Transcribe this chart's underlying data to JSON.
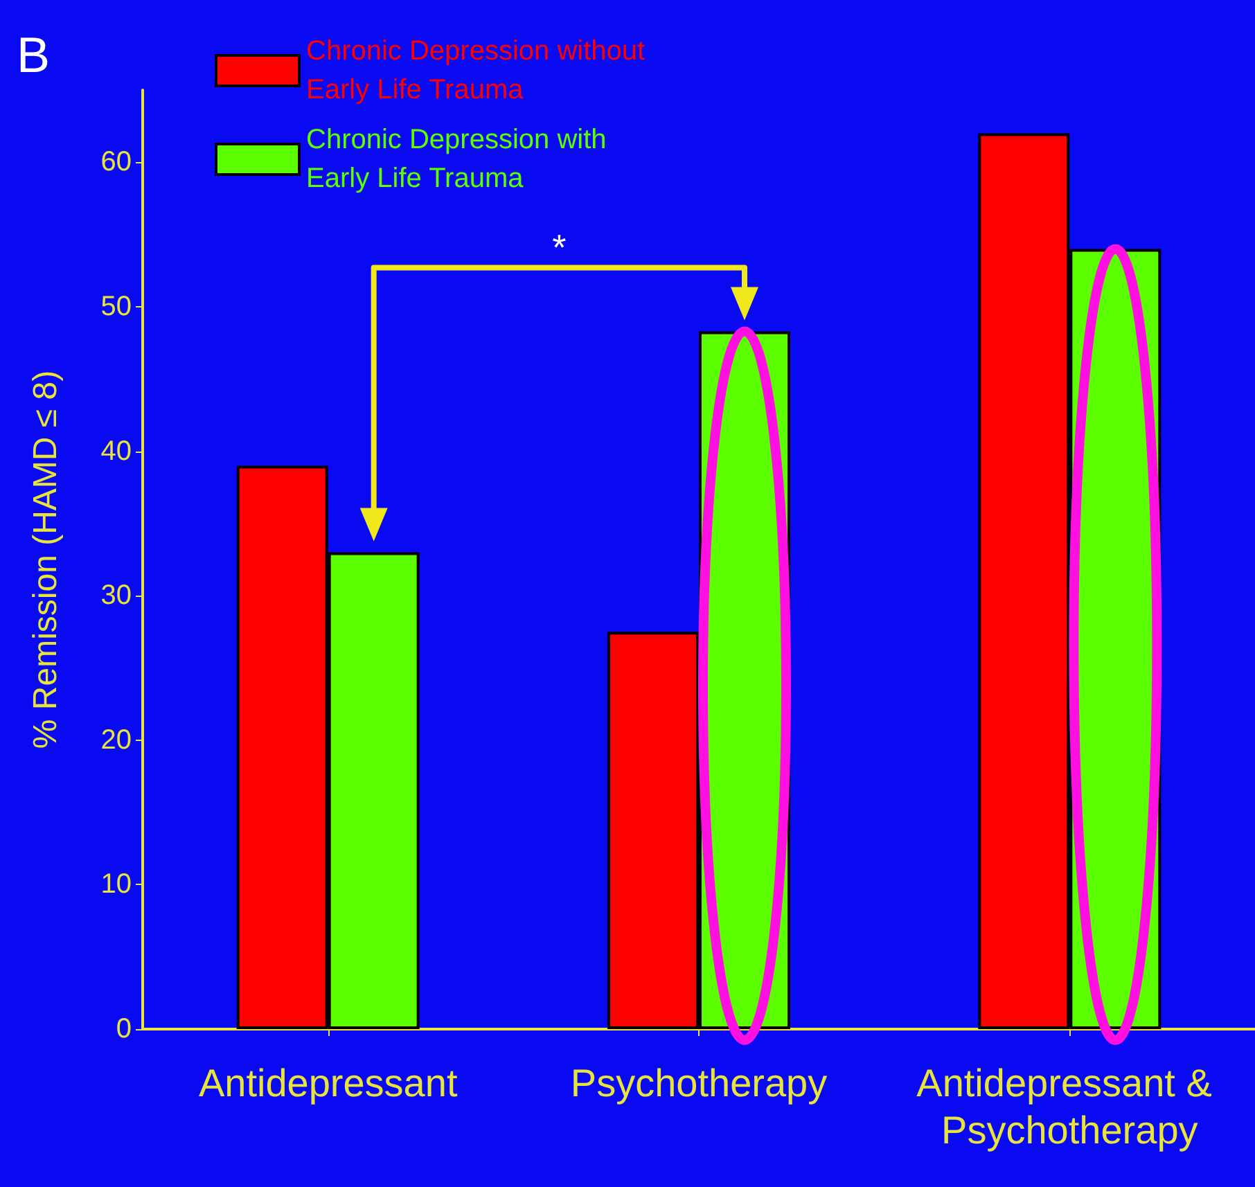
{
  "chart_data": {
    "type": "bar",
    "ylabel": "% Remission (HAMD ≤ 8)",
    "categories": [
      "Antidepressant",
      "Psychotherapy",
      "Antidepressant & Psychotherapy"
    ],
    "series": [
      {
        "name": "Chronic Depression without\nEarly Life Trauma",
        "color": "#ff0000",
        "values": [
          39,
          27.5,
          62
        ]
      },
      {
        "name": "Chronic Depression with\nEarly Life Trauma",
        "color": "#5cff00",
        "values": [
          33,
          48.3,
          54
        ]
      }
    ],
    "ylim": [
      0,
      65
    ],
    "yticks": [
      0,
      10,
      20,
      30,
      40,
      50,
      60
    ],
    "grid": false,
    "legend": "top left",
    "annotations": [
      "B",
      "*"
    ]
  }
}
